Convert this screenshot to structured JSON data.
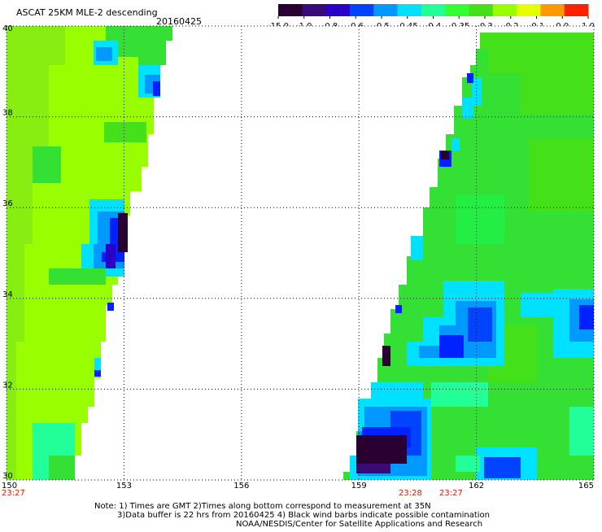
{
  "title": "ASCAT 25KM MLE-2 descending",
  "date": "20160425",
  "colorbar": {
    "labels": [
      "-15.0",
      "-1.0",
      "-0.8",
      "-0.6",
      "-0.5",
      "-0.45",
      "-0.4",
      "-0.35",
      "-0.3",
      "-0.2",
      "-0.1",
      "0.0",
      "1.0"
    ],
    "colors": [
      "#2a0033",
      "#3a0a7a",
      "#2a00c8",
      "#0044ff",
      "#0099ff",
      "#00e0ff",
      "#22ff99",
      "#33ff33",
      "#44e01a",
      "#99ff00",
      "#e6ff00",
      "#ff9900",
      "#ff2200"
    ]
  },
  "axes": {
    "lon_ticks": [
      "150",
      "153",
      "156",
      "159",
      "162",
      "165"
    ],
    "lat_ticks": [
      "40",
      "38",
      "36",
      "34",
      "32",
      "30"
    ],
    "lon_range": [
      150,
      165
    ],
    "lat_range": [
      30,
      40
    ]
  },
  "pass_times": {
    "left": "23:27",
    "right_a": "23:28",
    "right_b": "23:27",
    "color": "#cc2200"
  },
  "notes": {
    "line1": "Note: 1) Times are GMT 2)Times along bottom correspond to measurement at 35N",
    "line2": "3)Data buffer is 22 hrs from 20160425 4) Black wind barbs indicate possible contamination",
    "line3": "NOAA/NESDIS/Center for Satellite Applications and Research"
  },
  "palette": {
    "grid": "#000000",
    "green": "#2ee02e",
    "yellow_green": "#99ff00",
    "cyan": "#00ffff",
    "sky": "#00aaff",
    "blue": "#0022ff",
    "dark_purple": "#2a0033"
  }
}
